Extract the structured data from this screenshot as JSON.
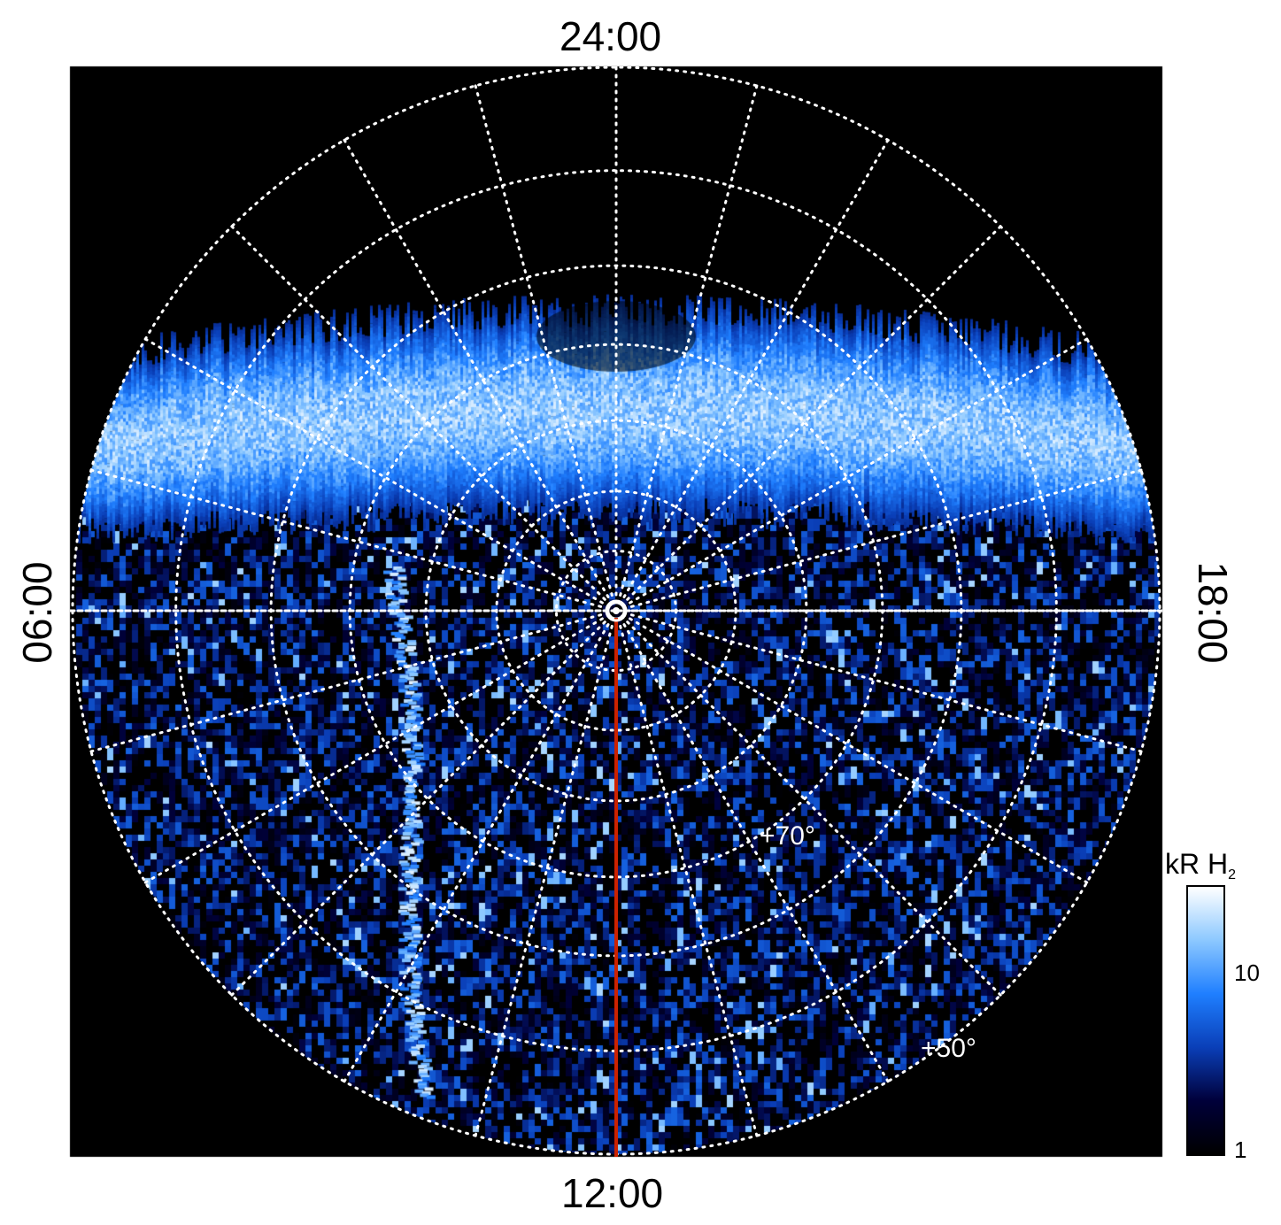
{
  "local_time_labels": {
    "top": "24:00",
    "bottom": "12:00",
    "left": "06:00",
    "right": "18:00"
  },
  "latitude_labels": {
    "inner": "+70°",
    "outer": "+50°"
  },
  "colorbar": {
    "title_main": "kR H",
    "title_subscript": "2",
    "ticks": [
      "10",
      "1"
    ],
    "scale": "log",
    "colors": [
      "#000000",
      "#00003a",
      "#0a3fb8",
      "#1f7fff",
      "#8cc8ff",
      "#ffffff"
    ]
  },
  "colors": {
    "background": "#000000",
    "grid": "#ffffff",
    "meridian_line": "#cc2200",
    "aurora": "#3a8cff"
  }
}
